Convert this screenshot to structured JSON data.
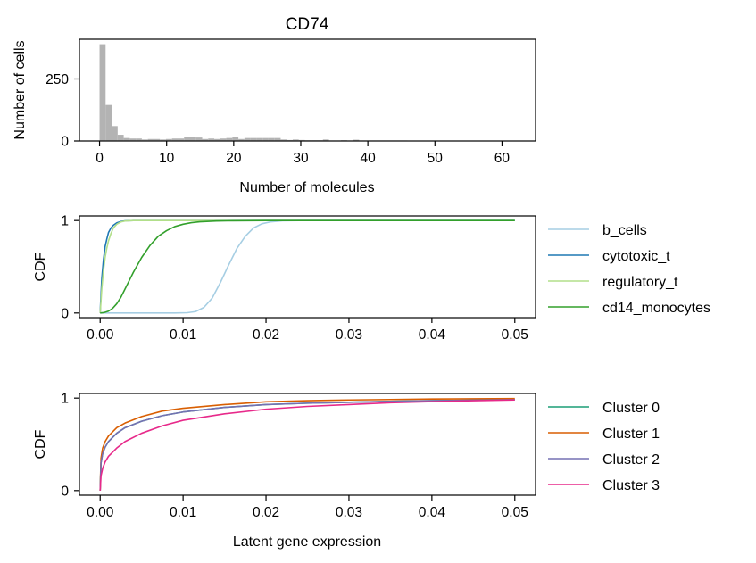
{
  "chart_data": [
    {
      "type": "bar",
      "title": "CD74",
      "xlabel": "Number of molecules",
      "ylabel": "Number of cells",
      "xlim": [
        -3,
        65
      ],
      "ylim": [
        0,
        410
      ],
      "xticks": [
        0,
        10,
        20,
        30,
        40,
        50,
        60
      ],
      "yticks": [
        0,
        250
      ],
      "color": "#b3b3b3",
      "bin_width": 0.9,
      "bin_starts": [
        0,
        0.9,
        1.8,
        2.7,
        3.6,
        4.5,
        5.4,
        6.3,
        7.2,
        8.1,
        9.0,
        9.9,
        10.8,
        11.7,
        12.6,
        13.5,
        14.4,
        15.3,
        16.2,
        17.1,
        18.0,
        18.9,
        19.8,
        20.7,
        21.6,
        22.5,
        23.4,
        24.3,
        25.2,
        26.1,
        27.0,
        27.9,
        28.8,
        29.7,
        30.6,
        31.5,
        32.4,
        33.3,
        34.2,
        35.1,
        36.0,
        36.9,
        37.8,
        38.7,
        39.6,
        40.5,
        41.4,
        42.3,
        43.2,
        44.1,
        45.0
      ],
      "values": [
        390,
        145,
        60,
        25,
        12,
        10,
        10,
        6,
        8,
        8,
        6,
        8,
        10,
        10,
        15,
        18,
        14,
        8,
        10,
        8,
        10,
        12,
        18,
        8,
        12,
        12,
        12,
        12,
        12,
        12,
        6,
        4,
        6,
        4,
        3,
        3,
        3,
        6,
        2,
        2,
        3,
        2,
        5,
        2,
        2,
        2,
        2,
        2,
        2,
        2,
        2
      ]
    },
    {
      "type": "line",
      "ylabel": "CDF",
      "xlim": [
        -0.0025,
        0.0525
      ],
      "ylim": [
        -0.05,
        1.05
      ],
      "xticks": [
        0.0,
        0.01,
        0.02,
        0.03,
        0.04,
        0.05
      ],
      "xtick_labels": [
        "0.00",
        "0.01",
        "0.02",
        "0.03",
        "0.04",
        "0.05"
      ],
      "yticks": [
        0,
        1
      ],
      "legend_position": "outside right",
      "series": [
        {
          "name": "b_cells",
          "color": "#a6cee3",
          "x": [
            0,
            0.005,
            0.009,
            0.0105,
            0.0115,
            0.0125,
            0.0135,
            0.0145,
            0.0155,
            0.0165,
            0.0175,
            0.0185,
            0.0195,
            0.0205,
            0.022,
            0.024,
            0.03,
            0.05
          ],
          "y": [
            0,
            0,
            0,
            0.003,
            0.015,
            0.06,
            0.16,
            0.33,
            0.52,
            0.7,
            0.83,
            0.92,
            0.965,
            0.985,
            0.997,
            1,
            1,
            1
          ]
        },
        {
          "name": "cytotoxic_t",
          "color": "#1f78b4",
          "x": [
            0,
            0.0001,
            0.0002,
            0.0004,
            0.0006,
            0.0008,
            0.001,
            0.0013,
            0.0016,
            0.002,
            0.0025,
            0.003,
            0.004,
            0.05
          ],
          "y": [
            0,
            0.2,
            0.38,
            0.58,
            0.72,
            0.8,
            0.87,
            0.92,
            0.95,
            0.975,
            0.99,
            0.997,
            1,
            1
          ]
        },
        {
          "name": "regulatory_t",
          "color": "#b2df8a",
          "x": [
            0,
            0.0001,
            0.0002,
            0.0004,
            0.0006,
            0.0008,
            0.001,
            0.0013,
            0.0016,
            0.002,
            0.0025,
            0.003,
            0.004,
            0.05
          ],
          "y": [
            0,
            0.13,
            0.27,
            0.46,
            0.6,
            0.7,
            0.78,
            0.86,
            0.92,
            0.96,
            0.985,
            0.995,
            1,
            1
          ]
        },
        {
          "name": "cd14_monocytes",
          "color": "#33a02c",
          "x": [
            0,
            0.0005,
            0.001,
            0.0015,
            0.002,
            0.0025,
            0.003,
            0.0035,
            0.004,
            0.005,
            0.006,
            0.007,
            0.008,
            0.009,
            0.01,
            0.011,
            0.012,
            0.014,
            0.016,
            0.02,
            0.05
          ],
          "y": [
            0,
            0.005,
            0.02,
            0.05,
            0.1,
            0.17,
            0.26,
            0.35,
            0.44,
            0.6,
            0.73,
            0.83,
            0.89,
            0.935,
            0.96,
            0.977,
            0.987,
            0.995,
            0.998,
            1,
            1
          ]
        }
      ]
    },
    {
      "type": "line",
      "ylabel": "CDF",
      "xlabel": "Latent gene expression",
      "xlim": [
        -0.0025,
        0.0525
      ],
      "ylim": [
        -0.05,
        1.05
      ],
      "xticks": [
        0.0,
        0.01,
        0.02,
        0.03,
        0.04,
        0.05
      ],
      "xtick_labels": [
        "0.00",
        "0.01",
        "0.02",
        "0.03",
        "0.04",
        "0.05"
      ],
      "yticks": [
        0,
        1
      ],
      "legend_position": "outside right",
      "series": [
        {
          "name": "Cluster 0",
          "color": "#1b9e77",
          "x": [
            0,
            0.0001,
            0.0003,
            0.0006,
            0.001,
            0.002,
            0.003,
            0.005,
            0.0075,
            0.01,
            0.015,
            0.02,
            0.025,
            0.03,
            0.035,
            0.04,
            0.045,
            0.05
          ],
          "y": [
            0,
            0.3,
            0.4,
            0.47,
            0.53,
            0.62,
            0.68,
            0.75,
            0.81,
            0.85,
            0.9,
            0.93,
            0.945,
            0.955,
            0.965,
            0.972,
            0.978,
            0.983
          ]
        },
        {
          "name": "Cluster 1",
          "color": "#d95f02",
          "x": [
            0,
            0.0001,
            0.0003,
            0.0006,
            0.001,
            0.002,
            0.003,
            0.005,
            0.0075,
            0.01,
            0.015,
            0.02,
            0.025,
            0.03,
            0.035,
            0.04,
            0.045,
            0.05
          ],
          "y": [
            0,
            0.35,
            0.46,
            0.53,
            0.59,
            0.68,
            0.73,
            0.8,
            0.86,
            0.89,
            0.93,
            0.96,
            0.972,
            0.98,
            0.985,
            0.99,
            0.993,
            0.995
          ]
        },
        {
          "name": "Cluster 2",
          "color": "#7570b3",
          "x": [
            0,
            0.0001,
            0.0003,
            0.0006,
            0.001,
            0.002,
            0.003,
            0.005,
            0.0075,
            0.01,
            0.015,
            0.02,
            0.025,
            0.03,
            0.035,
            0.04,
            0.045,
            0.05
          ],
          "y": [
            0,
            0.3,
            0.4,
            0.47,
            0.53,
            0.62,
            0.68,
            0.75,
            0.81,
            0.85,
            0.9,
            0.93,
            0.945,
            0.955,
            0.965,
            0.972,
            0.978,
            0.983
          ]
        },
        {
          "name": "Cluster 3",
          "color": "#e7298a",
          "x": [
            0,
            0.0001,
            0.0003,
            0.0006,
            0.001,
            0.002,
            0.003,
            0.005,
            0.0075,
            0.01,
            0.015,
            0.02,
            0.025,
            0.03,
            0.035,
            0.04,
            0.045,
            0.05
          ],
          "y": [
            0,
            0.16,
            0.24,
            0.31,
            0.37,
            0.46,
            0.53,
            0.62,
            0.7,
            0.76,
            0.83,
            0.88,
            0.91,
            0.93,
            0.95,
            0.962,
            0.972,
            0.98
          ]
        }
      ]
    }
  ]
}
